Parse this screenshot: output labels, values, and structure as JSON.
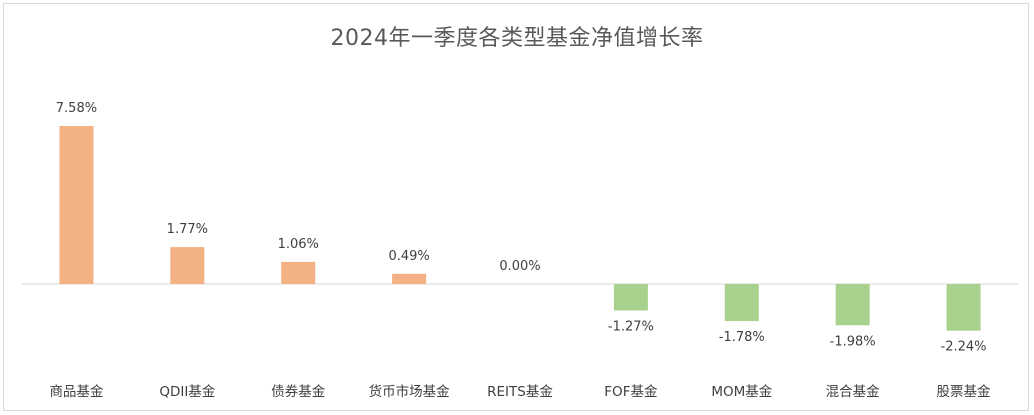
{
  "chart_data": {
    "type": "bar",
    "title": "2024年一季度各类型基金净值增长率",
    "categories": [
      "商品基金",
      "QDII基金",
      "债券基金",
      "货币市场基金",
      "REITS基金",
      "FOF基金",
      "MOM基金",
      "混合基金",
      "股票基金"
    ],
    "values": [
      7.58,
      1.77,
      1.06,
      0.49,
      0.0,
      -1.27,
      -1.78,
      -1.98,
      -2.24
    ],
    "value_labels": [
      "7.58%",
      "1.77%",
      "1.06%",
      "0.49%",
      "0.00%",
      "-1.27%",
      "-1.78%",
      "-1.98%",
      "-2.24%"
    ],
    "unit": "%",
    "grid": false,
    "legend": "none",
    "colors": {
      "positive": "#F4B183",
      "negative": "#A9D18E",
      "axis": "#d9d9d9"
    }
  }
}
